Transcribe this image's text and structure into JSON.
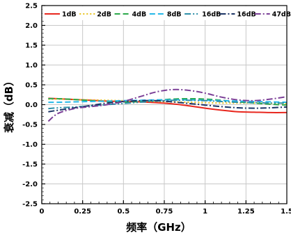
{
  "chart_data": {
    "type": "line",
    "xlabel": "频率（GHz）",
    "ylabel": "衰减（dB）",
    "xlim": [
      0,
      1.5
    ],
    "ylim": [
      -2.5,
      2.5
    ],
    "x_ticks": [
      0,
      0.25,
      0.5,
      0.75,
      1,
      1.25,
      1.5
    ],
    "x_tick_labels": [
      "0",
      "0.25",
      "0.5",
      "0.75",
      "1",
      "1.25",
      "1.5"
    ],
    "y_ticks": [
      -2.5,
      -2.0,
      -1.5,
      -1.0,
      -0.5,
      0.0,
      0.5,
      1.0,
      1.5,
      2.0,
      2.5
    ],
    "y_tick_labels": [
      "-2.5",
      "-2.0",
      "-1.5",
      "-1.0",
      "-0.5",
      "0.0",
      "0.5",
      "1.0",
      "1.5",
      "2.0",
      "2.5"
    ],
    "grid": true,
    "legend_position": "top",
    "x": [
      0.04,
      0.1,
      0.2,
      0.3,
      0.4,
      0.5,
      0.6,
      0.7,
      0.8,
      0.9,
      1.0,
      1.1,
      1.2,
      1.3,
      1.4,
      1.5
    ],
    "series": [
      {
        "name": "1dB",
        "color": "#e8271e",
        "dash": "solid",
        "values": [
          0.16,
          0.15,
          0.13,
          0.11,
          0.09,
          0.08,
          0.07,
          0.05,
          0.02,
          -0.03,
          -0.09,
          -0.14,
          -0.18,
          -0.19,
          -0.2,
          -0.2
        ]
      },
      {
        "name": "2dB",
        "color": "#e8c21c",
        "dash": "dot",
        "values": [
          0.14,
          0.14,
          0.13,
          0.12,
          0.11,
          0.1,
          0.09,
          0.08,
          0.07,
          0.06,
          0.05,
          0.04,
          0.04,
          0.04,
          0.03,
          0.03
        ]
      },
      {
        "name": "4dB",
        "color": "#2ba84a",
        "dash": "dash",
        "values": [
          0.15,
          0.15,
          0.13,
          0.1,
          0.08,
          0.07,
          0.08,
          0.11,
          0.14,
          0.15,
          0.14,
          0.11,
          0.07,
          0.04,
          0.01,
          -0.01
        ]
      },
      {
        "name": "8dB",
        "color": "#25b8e8",
        "dash": "dash",
        "values": [
          0.06,
          0.06,
          0.07,
          0.08,
          0.09,
          0.1,
          0.11,
          0.12,
          0.12,
          0.12,
          0.11,
          0.1,
          0.09,
          0.08,
          0.07,
          0.06
        ]
      },
      {
        "name": "16dB",
        "color": "#2d8fa8",
        "dash": "dashdotdot",
        "values": [
          -0.1,
          -0.08,
          -0.06,
          -0.03,
          0.0,
          0.03,
          0.06,
          0.09,
          0.11,
          0.11,
          0.1,
          0.08,
          0.06,
          0.05,
          0.04,
          0.04
        ]
      },
      {
        "name": "16dB",
        "color": "#1c3566",
        "dash": "dashdot",
        "values": [
          -0.18,
          -0.14,
          -0.08,
          -0.02,
          0.04,
          0.08,
          0.1,
          0.1,
          0.07,
          0.03,
          -0.01,
          -0.05,
          -0.08,
          -0.09,
          -0.08,
          -0.06
        ]
      },
      {
        "name": "47dB",
        "color": "#7b3f97",
        "dash": "dashdot",
        "values": [
          -0.42,
          -0.22,
          -0.1,
          -0.05,
          0.0,
          0.08,
          0.2,
          0.32,
          0.38,
          0.36,
          0.29,
          0.19,
          0.12,
          0.1,
          0.14,
          0.2
        ]
      }
    ]
  }
}
